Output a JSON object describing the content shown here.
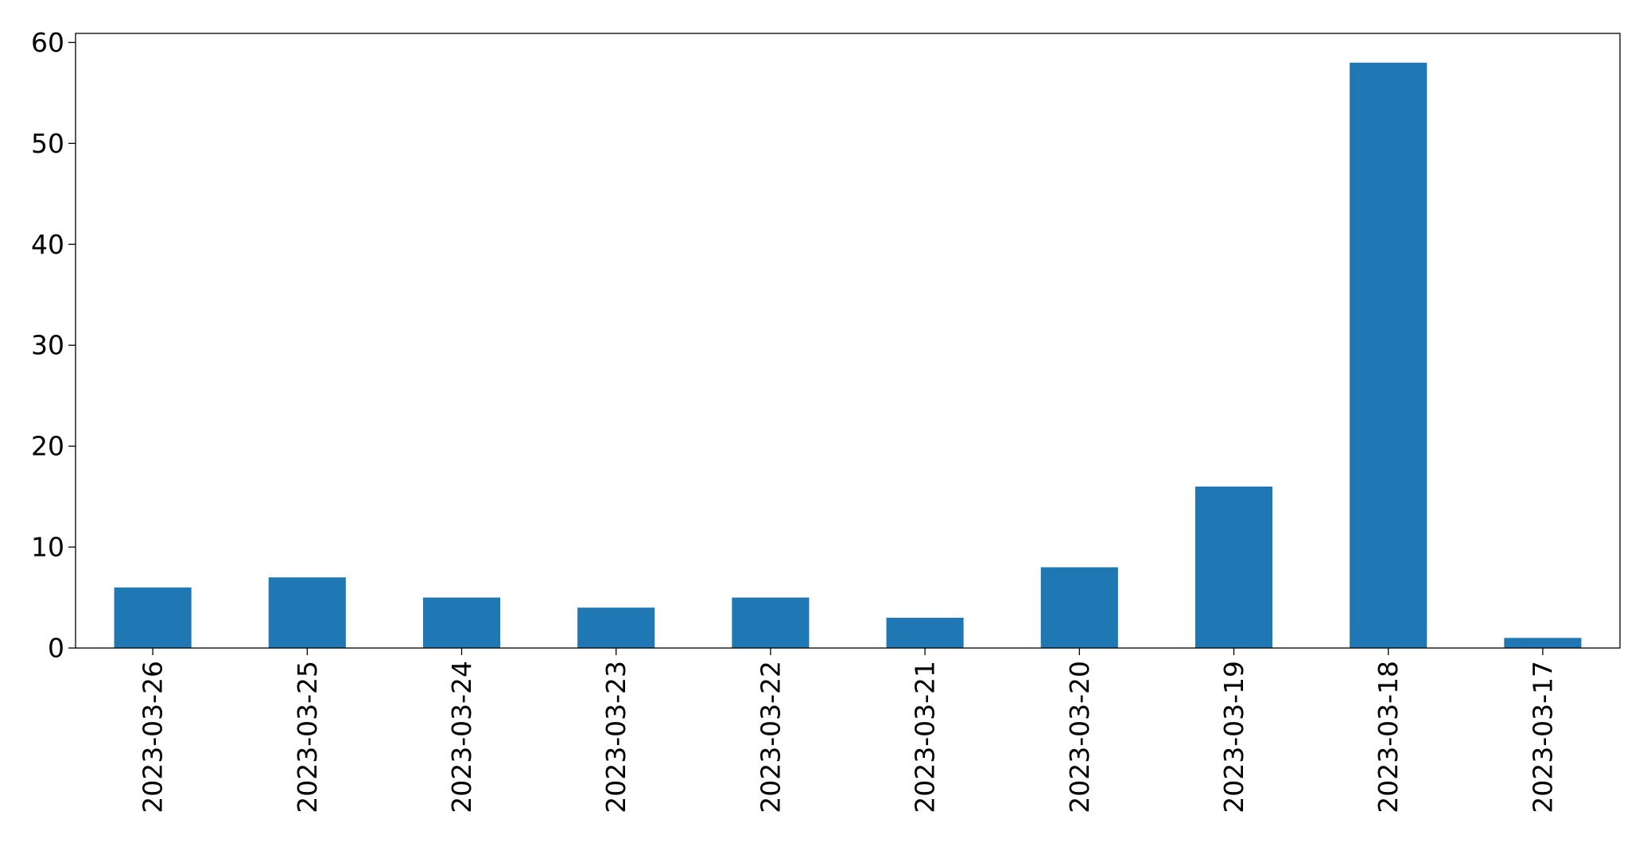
{
  "chart_data": {
    "type": "bar",
    "title": "",
    "xlabel": "",
    "ylabel": "",
    "categories": [
      "2023-03-26",
      "2023-03-25",
      "2023-03-24",
      "2023-03-23",
      "2023-03-22",
      "2023-03-21",
      "2023-03-20",
      "2023-03-19",
      "2023-03-18",
      "2023-03-17"
    ],
    "values": [
      6,
      7,
      5,
      4,
      5,
      3,
      8,
      16,
      58,
      1
    ],
    "ylim": [
      0,
      60.9
    ],
    "yticks": [
      0,
      10,
      20,
      30,
      40,
      50,
      60
    ],
    "ytick_labels": [
      "0",
      "10",
      "20",
      "30",
      "40",
      "50",
      "60"
    ],
    "x_tick_rotation": "vertical",
    "grid": false,
    "legend": "none",
    "bar_color": "#1f77b4"
  }
}
